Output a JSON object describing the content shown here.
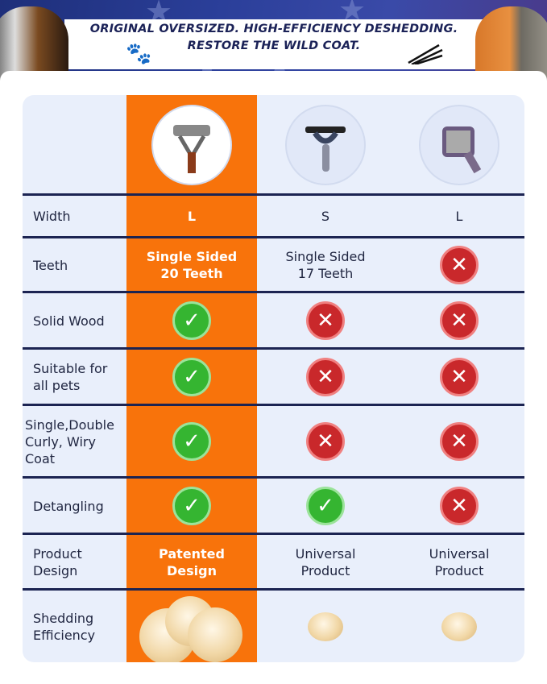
{
  "banner": {
    "line1": "ORIGINAL OVERSIZED. HIGH-EFFICIENCY DESHEDDING.",
    "line2": "RESTORE THE WILD COAT."
  },
  "colors": {
    "highlight": "#f8730b",
    "row_bg": "#e9effb",
    "divider": "#1c2452",
    "check": "#35b531",
    "cross": "#c9282b"
  },
  "products": [
    {
      "icon": "wooden-handle-dematting-rake"
    },
    {
      "icon": "plastic-handle-rake"
    },
    {
      "icon": "slicker-brush"
    }
  ],
  "rows": [
    {
      "label": "Width",
      "values": [
        {
          "text": "L"
        },
        {
          "text": "S"
        },
        {
          "text": "L"
        }
      ]
    },
    {
      "label": "Teeth",
      "values": [
        {
          "text": "Single Sided\n20 Teeth"
        },
        {
          "text": "Single Sided\n17 Teeth"
        },
        {
          "icon": "cross"
        }
      ]
    },
    {
      "label": "Solid Wood",
      "values": [
        {
          "icon": "check"
        },
        {
          "icon": "cross"
        },
        {
          "icon": "cross"
        }
      ]
    },
    {
      "label": "Suitable for\nall pets",
      "values": [
        {
          "icon": "check"
        },
        {
          "icon": "cross"
        },
        {
          "icon": "cross"
        }
      ]
    },
    {
      "label": "Single,Double\nCurly, Wiry\nCoat",
      "values": [
        {
          "icon": "check"
        },
        {
          "icon": "cross"
        },
        {
          "icon": "cross"
        }
      ]
    },
    {
      "label": "Detangling",
      "values": [
        {
          "icon": "check"
        },
        {
          "icon": "check"
        },
        {
          "icon": "cross"
        }
      ]
    },
    {
      "label": "Product\nDesign",
      "values": [
        {
          "text": "Patented\nDesign"
        },
        {
          "text": "Universal\nProduct"
        },
        {
          "text": "Universal\nProduct"
        }
      ]
    },
    {
      "label": "Shedding\nEfficiency",
      "values": [
        {
          "fur": "large"
        },
        {
          "fur": "small"
        },
        {
          "fur": "small"
        }
      ]
    }
  ]
}
